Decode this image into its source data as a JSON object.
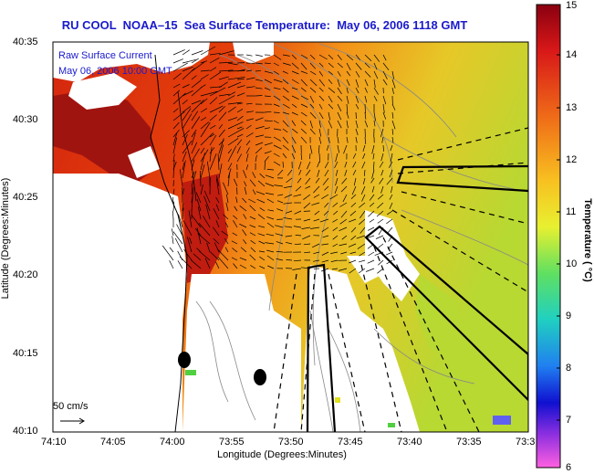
{
  "title": "RU COOL  NOAA–15  Sea Surface Temperature:  May 06, 2006 1118 GMT",
  "legend": {
    "line1": "Raw Surface Current",
    "line2": "May 06, 2006 10:00 GMT"
  },
  "scale": {
    "label": "50 cm/s"
  },
  "axes": {
    "xlabel": "Longitude (Degrees:Minutes)",
    "ylabel": "Latitude (Degrees:Minutes)",
    "x_ticks": [
      "74:10",
      "74:05",
      "74:00",
      "73:55",
      "73:50",
      "73:45",
      "73:40",
      "73:35",
      "73:3"
    ],
    "y_ticks": [
      "40:35",
      "40:30",
      "40:25",
      "40:20",
      "40:15",
      "40:10"
    ]
  },
  "colorbar": {
    "label": "Temperature ( °C)",
    "ticks": [
      "15",
      "14",
      "13",
      "12",
      "11",
      "10",
      "9",
      "8",
      "7",
      "6"
    ],
    "range": [
      6,
      15
    ]
  },
  "colors": {
    "title": "#1a1acd",
    "land": "#ffffff",
    "ocean_warm": "#d42a10",
    "ocean_cool": "#c8e030"
  }
}
